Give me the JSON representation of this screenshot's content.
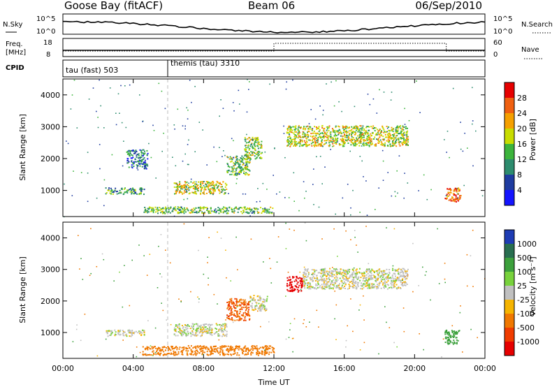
{
  "header": {
    "station": "Goose Bay (fitACF)",
    "beam": "Beam 06",
    "date": "06/Sep/2010"
  },
  "noise_panel": {
    "left_label": "N.Sky",
    "right_label": "N.Search",
    "left_ticks": [
      "10^5",
      "10^0"
    ],
    "right_ticks": [
      "10^5",
      "10^0"
    ]
  },
  "freq_panel": {
    "left_label_1": "Freq.",
    "left_label_2": "[MHz]",
    "right_label": "Nave",
    "left_ticks": [
      "18",
      "8"
    ],
    "right_ticks": [
      "60",
      "0"
    ]
  },
  "cpid": {
    "label": "CPID",
    "modes": [
      {
        "label": "tau (fast) 503"
      },
      {
        "label": "themis (tau) 3310"
      }
    ]
  },
  "power_colorbar": {
    "label": "Power [dB]",
    "ticks": [
      "28",
      "24",
      "20",
      "16",
      "12",
      "8",
      "4"
    ],
    "colors": [
      "#e60000",
      "#f06010",
      "#f5a000",
      "#c8dc00",
      "#3cb43c",
      "#2d8c6e",
      "#1e3ca0",
      "#1414ff"
    ]
  },
  "velocity_colorbar": {
    "label": "Velocity [m s⁻¹]",
    "ticks": [
      "1000",
      "500",
      "100",
      "25",
      "-25",
      "-100",
      "-500",
      "-1000"
    ],
    "colors": [
      "#1e3cb4",
      "#286e50",
      "#3ca03c",
      "#78d23c",
      "#c0c0c0",
      "#f5b400",
      "#f07800",
      "#f03c00",
      "#e60000"
    ]
  },
  "axes": {
    "ylabel": "Slant Range [km]",
    "xlabel": "Time UT",
    "x_ticks": [
      "00:00",
      "04:00",
      "08:00",
      "12:00",
      "16:00",
      "20:00",
      "00:00"
    ],
    "y_ticks": [
      "1000",
      "2000",
      "3000",
      "4000"
    ]
  },
  "chart_data": {
    "type": "heatmap",
    "x_range_hours": [
      0,
      24
    ],
    "y_range_km": [
      180,
      4500
    ],
    "grid": false,
    "power_regions": [
      {
        "t": [
          2.4,
          4.6
        ],
        "r": [
          900,
          1100
        ],
        "db": 12
      },
      {
        "t": [
          3.6,
          4.8
        ],
        "r": [
          1700,
          2300
        ],
        "db": 8
      },
      {
        "t": [
          6.3,
          9.3
        ],
        "r": [
          900,
          1300
        ],
        "db": 18
      },
      {
        "t": [
          4.5,
          12.0
        ],
        "r": [
          300,
          500
        ],
        "db": 14
      },
      {
        "t": [
          9.3,
          10.6
        ],
        "r": [
          1500,
          2100
        ],
        "db": 14
      },
      {
        "t": [
          10.3,
          11.3
        ],
        "r": [
          2000,
          2700
        ],
        "db": 16
      },
      {
        "t": [
          12.7,
          19.6
        ],
        "r": [
          2400,
          3050
        ],
        "db": 18
      },
      {
        "t": [
          21.7,
          22.6
        ],
        "r": [
          650,
          1100
        ],
        "db": 26
      }
    ],
    "velocity_regions": [
      {
        "t": [
          2.4,
          4.6
        ],
        "r": [
          900,
          1100
        ],
        "v": 0
      },
      {
        "t": [
          6.3,
          9.3
        ],
        "r": [
          900,
          1300
        ],
        "v": 0
      },
      {
        "t": [
          4.5,
          12.0
        ],
        "r": [
          300,
          600
        ],
        "v": -100
      },
      {
        "t": [
          9.3,
          10.6
        ],
        "r": [
          1400,
          2100
        ],
        "v": -300
      },
      {
        "t": [
          10.6,
          11.6
        ],
        "r": [
          1700,
          2200
        ],
        "v": 0
      },
      {
        "t": [
          12.7,
          13.6
        ],
        "r": [
          2300,
          2800
        ],
        "v": -1000
      },
      {
        "t": [
          13.6,
          19.6
        ],
        "r": [
          2400,
          3050
        ],
        "v": 0
      },
      {
        "t": [
          21.7,
          22.6
        ],
        "r": [
          650,
          1100
        ],
        "v": 200
      }
    ],
    "cpid_change_hours": 6.0,
    "nave_step_hours": [
      12.0,
      21.8
    ]
  }
}
